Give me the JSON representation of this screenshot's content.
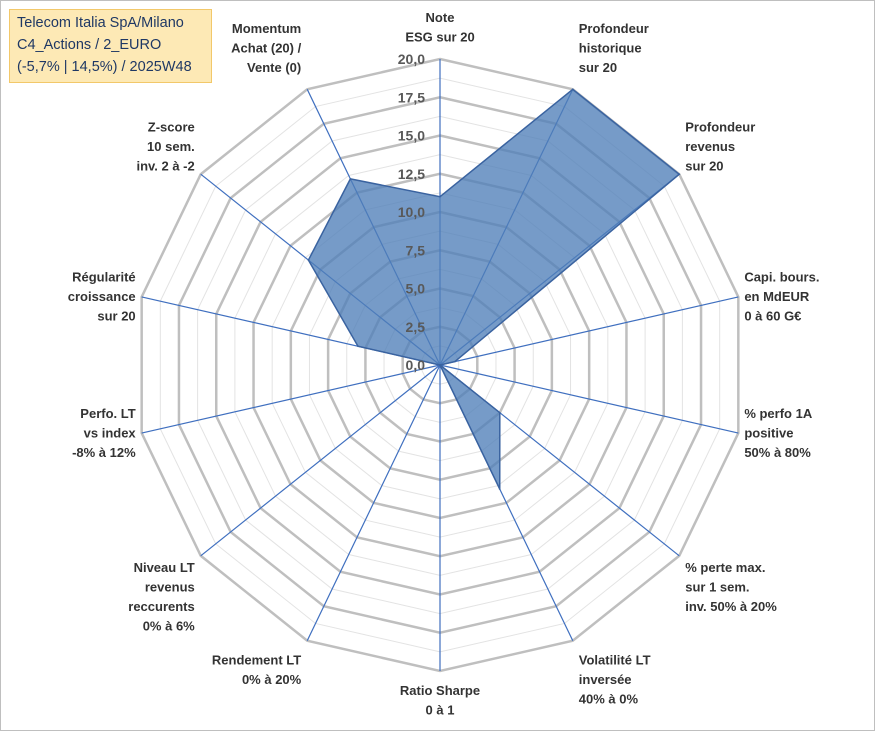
{
  "title_box": {
    "line1": "Telecom Italia SpA/Milano",
    "line2": "C4_Actions / 2_EURO",
    "line3": "(-5,7% | 14,5%) / 2025W48"
  },
  "colors": {
    "fill": "#4f7fb8",
    "stroke": "#3a63a0",
    "spoke": "#3f6fbf",
    "ring_major": "#bfbfbf",
    "ring_minor": "#e3e3e3",
    "title_bg": "#fde9b5"
  },
  "chart_data": {
    "type": "radar",
    "title": "Telecom Italia SpA/Milano",
    "rmin": 0,
    "rmax": 20,
    "ticks": [
      "0,0",
      "2,5",
      "5,0",
      "7,5",
      "10,0",
      "12,5",
      "15,0",
      "17,5",
      "20,0"
    ],
    "tick_values": [
      0,
      2.5,
      5,
      7.5,
      10,
      12.5,
      15,
      17.5,
      20
    ],
    "axes": [
      {
        "label": [
          "Note",
          "ESG sur 20"
        ],
        "value": 11
      },
      {
        "label": [
          "Profondeur",
          "historique",
          "sur 20"
        ],
        "value": 20
      },
      {
        "label": [
          "Profondeur",
          "revenus",
          "sur 20"
        ],
        "value": 20
      },
      {
        "label": [
          "Capi. bours.",
          "en MdEUR",
          "0 à 60 G€"
        ],
        "value": 1
      },
      {
        "label": [
          "% perfo 1A",
          "positive",
          "50% à 80%"
        ],
        "value": 0
      },
      {
        "label": [
          "% perte max.",
          "sur 1 sem.",
          "inv. 50% à 20%"
        ],
        "value": 5
      },
      {
        "label": [
          "Volatilité LT",
          "inversée",
          "40% à 0%"
        ],
        "value": 9
      },
      {
        "label": [
          "Ratio Sharpe",
          "0 à 1"
        ],
        "value": 0
      },
      {
        "label": [
          "Rendement LT",
          "0% à 20%"
        ],
        "value": 0
      },
      {
        "label": [
          "Niveau LT",
          "revenus",
          "reccurents",
          "0% à 6%"
        ],
        "value": 0
      },
      {
        "label": [
          "Perfo. LT",
          "vs index",
          "-8% à 12%"
        ],
        "value": 0
      },
      {
        "label": [
          "Régularité",
          "croissance",
          "sur 20"
        ],
        "value": 5.5
      },
      {
        "label": [
          "Z-score",
          "10 sem.",
          "inv. 2 à -2"
        ],
        "value": 11
      },
      {
        "label": [
          "Momentum",
          "Achat (20) /",
          "Vente (0)"
        ],
        "value": 13.5
      }
    ]
  }
}
